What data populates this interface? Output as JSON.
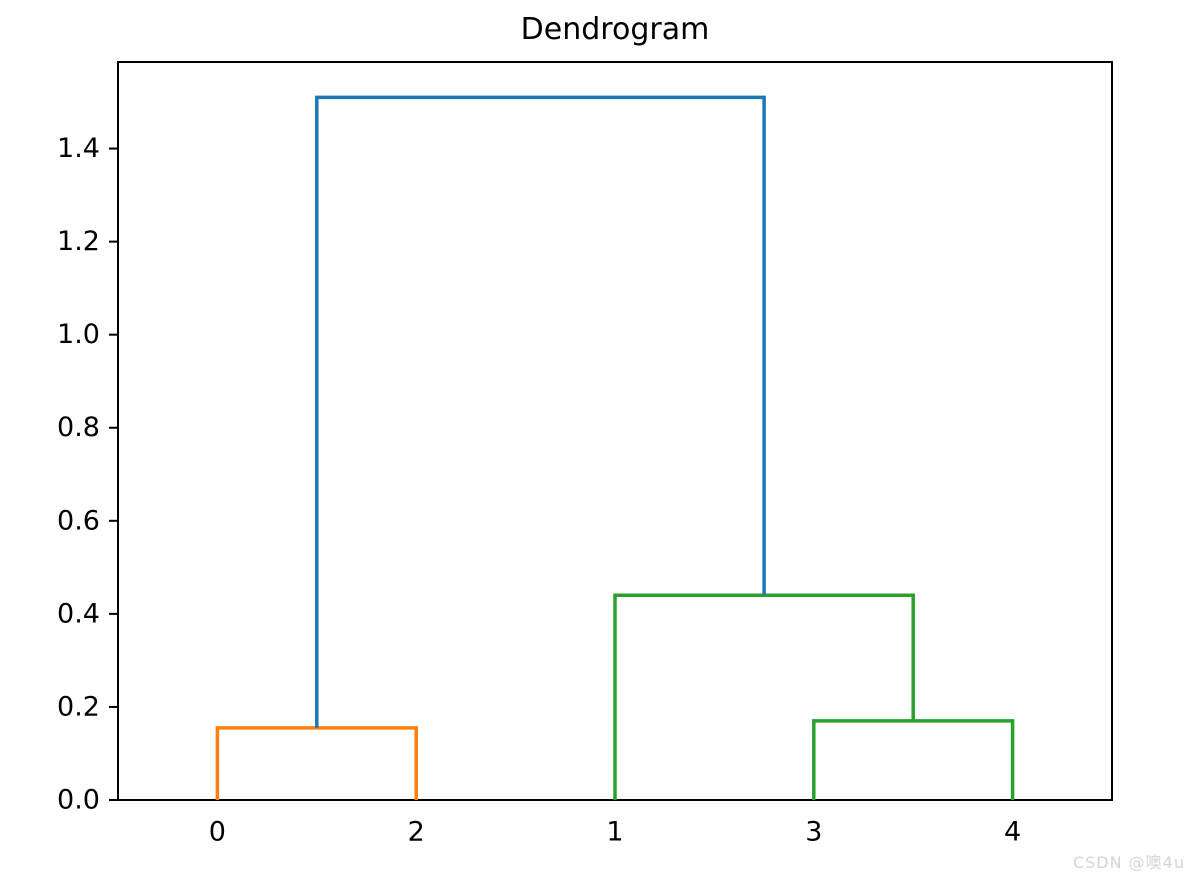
{
  "title": "Dendrogram",
  "watermark": "CSDN @噢4u",
  "chart_data": {
    "type": "dendrogram",
    "title": "Dendrogram",
    "xlabel": "",
    "ylabel": "",
    "grid": false,
    "legend": null,
    "leaf_labels": [
      "0",
      "2",
      "1",
      "3",
      "4"
    ],
    "leaf_x": [
      5,
      15,
      25,
      35,
      45
    ],
    "xlim": [
      0,
      50
    ],
    "ylim": [
      0,
      1.586
    ],
    "yticks": [
      0.0,
      0.2,
      0.4,
      0.6,
      0.8,
      1.0,
      1.2,
      1.4
    ],
    "ytick_labels": [
      "0.0",
      "0.2",
      "0.4",
      "0.6",
      "0.8",
      "1.0",
      "1.2",
      "1.4"
    ],
    "colors": {
      "root_link": "#1f77b4",
      "cluster_left": "#ff7f0e",
      "cluster_right": "#2ca02c",
      "axis": "#000000",
      "text": "#000000"
    },
    "merges": [
      {
        "members": [
          "0",
          "2"
        ],
        "height": 0.155,
        "color": "#ff7f0e"
      },
      {
        "members": [
          "3",
          "4"
        ],
        "height": 0.17,
        "color": "#2ca02c"
      },
      {
        "members": [
          "1",
          "3+4"
        ],
        "height": 0.44,
        "color": "#2ca02c"
      },
      {
        "members": [
          "0+2",
          "1+3+4"
        ],
        "height": 1.51,
        "color": "#1f77b4"
      }
    ],
    "links": [
      {
        "x1": 5,
        "y1": 0,
        "x2": 15,
        "y2": 0,
        "height": 0.155,
        "color": "#ff7f0e"
      },
      {
        "x1": 35,
        "y1": 0,
        "x2": 45,
        "y2": 0,
        "height": 0.17,
        "color": "#2ca02c"
      },
      {
        "x1": 25,
        "y1": 0,
        "x2": 40,
        "y2": 0.17,
        "height": 0.44,
        "color": "#2ca02c"
      },
      {
        "x1": 10,
        "y1": 0.155,
        "x2": 32.5,
        "y2": 0.44,
        "height": 1.51,
        "color": "#1f77b4"
      }
    ]
  }
}
